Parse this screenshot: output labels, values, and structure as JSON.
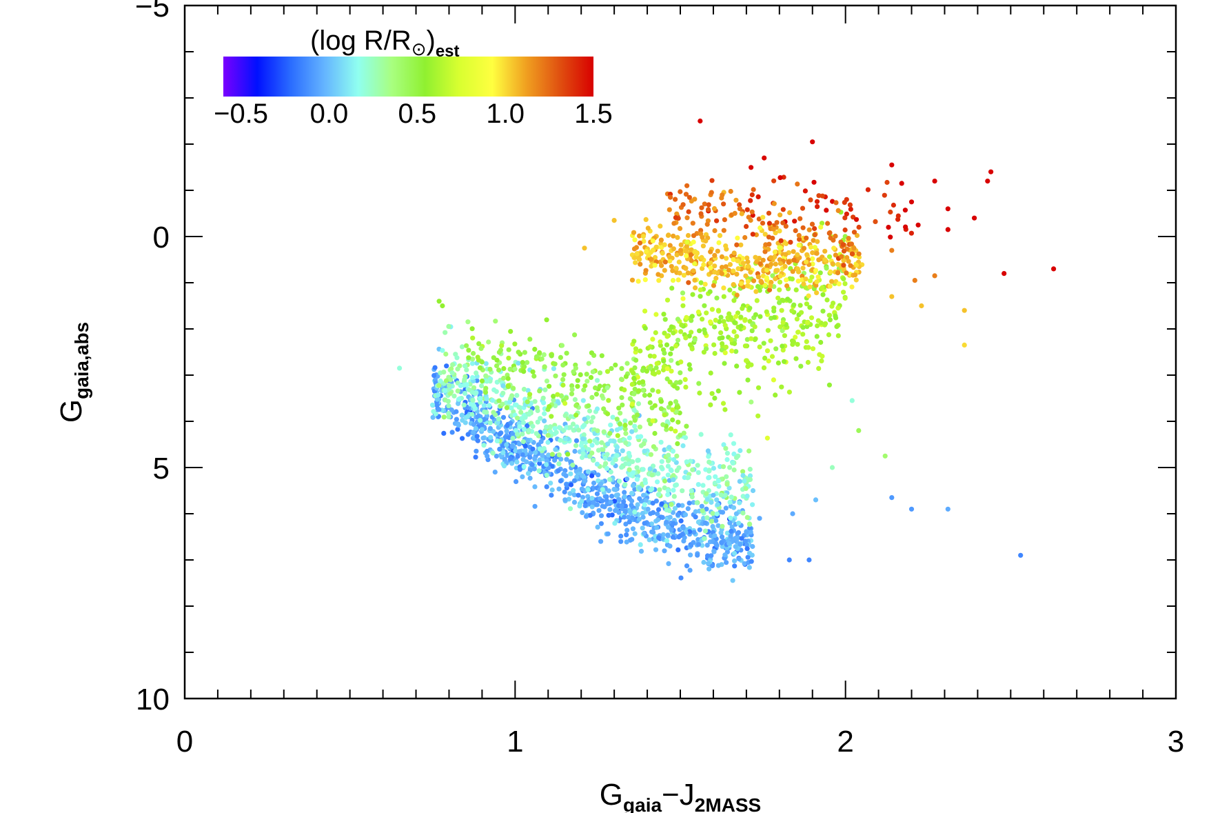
{
  "chart_data": {
    "type": "scatter",
    "title": "",
    "xlabel": {
      "main": "G",
      "sub1": "gaia",
      "mid": "−J",
      "sub2": "2MASS"
    },
    "ylabel": {
      "main": "G",
      "sub": "gaia,abs"
    },
    "xlim": [
      0,
      3
    ],
    "ylim": [
      10,
      -5
    ],
    "y_inverted": true,
    "x_major_ticks": [
      0,
      1,
      2,
      3
    ],
    "x_tick_labels": [
      "0",
      "1",
      "2",
      "3"
    ],
    "y_major_ticks": [
      -5,
      0,
      5,
      10
    ],
    "y_tick_labels": [
      "−5",
      "0",
      "5",
      "10"
    ],
    "grid": false,
    "colorbar": {
      "label_main": "(log  R/R",
      "label_sun": "⊙",
      "label_close": ")",
      "label_sub": "est",
      "range": [
        -0.6,
        1.5
      ],
      "tick_values": [
        -0.5,
        0.0,
        0.5,
        1.0,
        1.5
      ],
      "tick_labels": [
        "−0.5",
        "0.0",
        "0.5",
        "1.0",
        "1.5"
      ],
      "placement": "top-left",
      "colormap": [
        "#7a00ff",
        "#0010ff",
        "#2a6cff",
        "#64b4ff",
        "#90fff0",
        "#a8ff80",
        "#90f030",
        "#d8ff30",
        "#ffff40",
        "#f0a020",
        "#e05010",
        "#d80000"
      ]
    },
    "series_clusters": [
      {
        "name": "main-sequence-lower",
        "x_range": [
          0.75,
          1.72
        ],
        "y_center_at_x": [
          [
            0.75,
            3.3
          ],
          [
            1.0,
            4.6
          ],
          [
            1.3,
            5.7
          ],
          [
            1.6,
            6.6
          ]
        ],
        "spread": 0.35,
        "color_value": -0.05,
        "count": 900
      },
      {
        "name": "main-sequence-upper",
        "x_range": [
          0.75,
          1.72
        ],
        "y_center_at_x": [
          [
            0.75,
            3.0
          ],
          [
            1.0,
            3.7
          ],
          [
            1.3,
            4.6
          ],
          [
            1.6,
            5.4
          ]
        ],
        "spread": 0.45,
        "color_value": 0.22,
        "count": 650
      },
      {
        "name": "turnoff-green",
        "x_range": [
          0.85,
          1.5
        ],
        "y_center_at_x": [
          [
            0.85,
            2.4
          ],
          [
            1.2,
            3.1
          ],
          [
            1.5,
            3.8
          ]
        ],
        "spread": 0.4,
        "color_value": 0.5,
        "count": 220
      },
      {
        "name": "subgiant-branch",
        "x_range": [
          1.35,
          2.0
        ],
        "y_center_at_x": [
          [
            1.35,
            2.8
          ],
          [
            1.6,
            2.1
          ],
          [
            1.9,
            1.6
          ],
          [
            2.0,
            1.2
          ]
        ],
        "spread": 0.7,
        "color_value": 0.6,
        "count": 420
      },
      {
        "name": "red-clump",
        "x_range": [
          1.35,
          2.05
        ],
        "y_center_at_x": [
          [
            1.35,
            0.3
          ],
          [
            1.7,
            0.6
          ],
          [
            2.05,
            0.5
          ]
        ],
        "spread": 0.3,
        "color_value": 1.05,
        "count": 420
      },
      {
        "name": "giants-orange",
        "x_range": [
          1.45,
          2.05
        ],
        "y_center_at_x": [
          [
            1.45,
            -0.6
          ],
          [
            1.8,
            -0.3
          ],
          [
            2.05,
            0.2
          ]
        ],
        "spread": 0.3,
        "color_value": 1.25,
        "count": 120
      },
      {
        "name": "giants-red",
        "x_range": [
          1.7,
          2.2
        ],
        "y_center_at_x": [
          [
            1.7,
            -1.0
          ],
          [
            2.0,
            -0.7
          ],
          [
            2.2,
            -0.5
          ]
        ],
        "spread": 0.3,
        "color_value": 1.4,
        "count": 45
      }
    ],
    "outlier_points": [
      {
        "x": 1.56,
        "y": -2.5,
        "c": 1.5
      },
      {
        "x": 1.9,
        "y": -2.05,
        "c": 1.5
      },
      {
        "x": 2.14,
        "y": -1.55,
        "c": 1.5
      },
      {
        "x": 2.44,
        "y": -1.4,
        "c": 1.5
      },
      {
        "x": 2.43,
        "y": -1.2,
        "c": 1.5
      },
      {
        "x": 2.27,
        "y": -1.2,
        "c": 1.5
      },
      {
        "x": 2.17,
        "y": -1.15,
        "c": 1.5
      },
      {
        "x": 2.2,
        "y": -0.75,
        "c": 1.5
      },
      {
        "x": 2.31,
        "y": -0.6,
        "c": 1.5
      },
      {
        "x": 2.39,
        "y": -0.4,
        "c": 1.5
      },
      {
        "x": 2.13,
        "y": -0.2,
        "c": 1.5
      },
      {
        "x": 2.22,
        "y": -0.25,
        "c": 1.5
      },
      {
        "x": 2.31,
        "y": -0.15,
        "c": 1.5
      },
      {
        "x": 2.48,
        "y": 0.8,
        "c": 1.5
      },
      {
        "x": 2.63,
        "y": 0.7,
        "c": 1.5
      },
      {
        "x": 1.52,
        "y": -1.1,
        "c": 1.25
      },
      {
        "x": 1.47,
        "y": -0.85,
        "c": 1.25
      },
      {
        "x": 1.3,
        "y": -0.35,
        "c": 1.05
      },
      {
        "x": 1.21,
        "y": 0.25,
        "c": 1.05
      },
      {
        "x": 2.14,
        "y": 0.3,
        "c": 1.2
      },
      {
        "x": 2.21,
        "y": 0.95,
        "c": 1.2
      },
      {
        "x": 2.27,
        "y": 0.85,
        "c": 1.2
      },
      {
        "x": 2.14,
        "y": 1.3,
        "c": 1.05
      },
      {
        "x": 2.23,
        "y": 1.5,
        "c": 1.05
      },
      {
        "x": 2.36,
        "y": 1.6,
        "c": 1.05
      },
      {
        "x": 2.36,
        "y": 2.35,
        "c": 1.0
      },
      {
        "x": 0.77,
        "y": 1.4,
        "c": 0.55
      },
      {
        "x": 0.78,
        "y": 1.5,
        "c": 0.55
      },
      {
        "x": 2.04,
        "y": 4.2,
        "c": 0.45
      },
      {
        "x": 2.12,
        "y": 4.75,
        "c": 0.4
      },
      {
        "x": 1.96,
        "y": 5.0,
        "c": 0.25
      },
      {
        "x": 2.02,
        "y": 3.55,
        "c": 0.2
      },
      {
        "x": 0.65,
        "y": 2.85,
        "c": 0.2
      },
      {
        "x": 1.91,
        "y": 5.7,
        "c": 0.0
      },
      {
        "x": 1.84,
        "y": 6.0,
        "c": -0.05
      },
      {
        "x": 2.14,
        "y": 5.65,
        "c": -0.1
      },
      {
        "x": 2.2,
        "y": 5.9,
        "c": -0.1
      },
      {
        "x": 2.31,
        "y": 5.9,
        "c": -0.05
      },
      {
        "x": 1.83,
        "y": 7.0,
        "c": -0.15
      },
      {
        "x": 1.89,
        "y": 7.0,
        "c": -0.15
      },
      {
        "x": 2.53,
        "y": 6.9,
        "c": -0.15
      },
      {
        "x": 1.68,
        "y": 5.3,
        "c": 0.05
      },
      {
        "x": 1.72,
        "y": 5.5,
        "c": 0.05
      },
      {
        "x": 1.6,
        "y": 5.6,
        "c": 0.0
      },
      {
        "x": 1.65,
        "y": 6.2,
        "c": -0.05
      },
      {
        "x": 1.7,
        "y": 6.4,
        "c": -0.05
      },
      {
        "x": 1.74,
        "y": 6.1,
        "c": -0.05
      }
    ]
  }
}
